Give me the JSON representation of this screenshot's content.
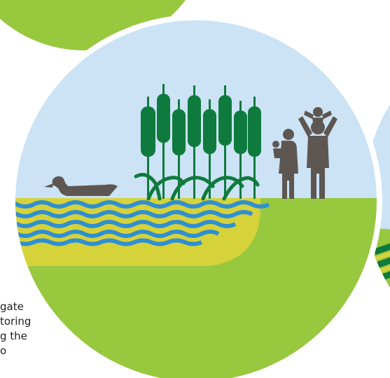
{
  "caption": {
    "lines": [
      "gate",
      "toring",
      "g the",
      "o"
    ]
  },
  "palette": {
    "sky": "#cbe3f5",
    "grass": "#97c83e",
    "bank": "#d6d23a",
    "water_blue": "#2e8fd3",
    "water_yellow": "#d6d23a",
    "reed_green": "#0f7a3d",
    "figure_brown": "#5e5650",
    "ring": "#ffffff"
  },
  "scene": {
    "illustration": "wetland-with-duck-reeds-and-family",
    "icons": [
      "duck-icon",
      "reeds-icon",
      "family-icon"
    ]
  }
}
